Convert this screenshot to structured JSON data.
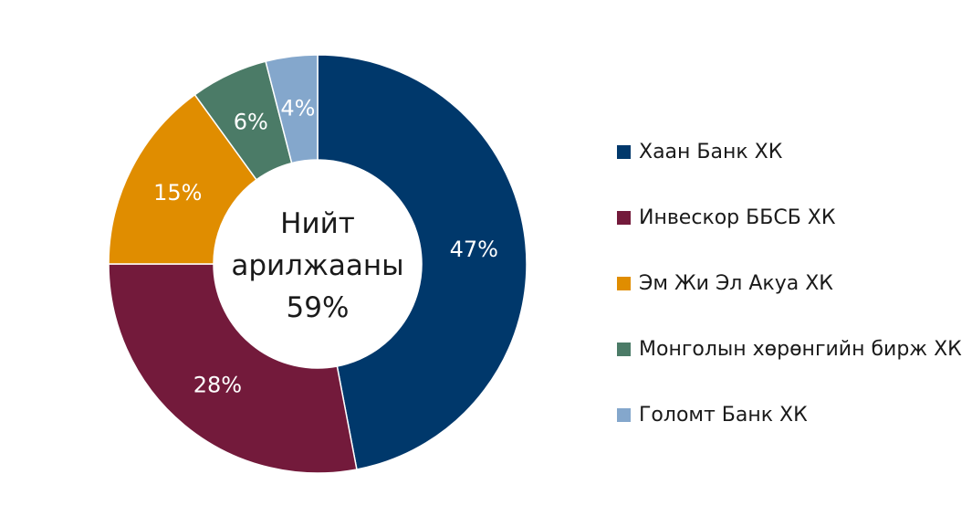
{
  "chart_data": {
    "type": "pie",
    "style": "donut",
    "center_label": {
      "lines": [
        "Нийт",
        "арилжааны",
        "59%"
      ]
    },
    "categories": [
      "Хаан Банк ХК",
      "Инвескор ББСБ ХК",
      "Эм Жи Эл Акуа ХК",
      "Монголын хөрөнгийн бирж ХК",
      "Голомт Банк ХК"
    ],
    "values": [
      47,
      28,
      15,
      6,
      4
    ],
    "value_labels": [
      "47%",
      "28%",
      "15%",
      "6%",
      "4%"
    ],
    "colors": [
      "#00386b",
      "#731a3b",
      "#e08d00",
      "#4b7b67",
      "#84a7cc"
    ],
    "legend_position": "right"
  }
}
